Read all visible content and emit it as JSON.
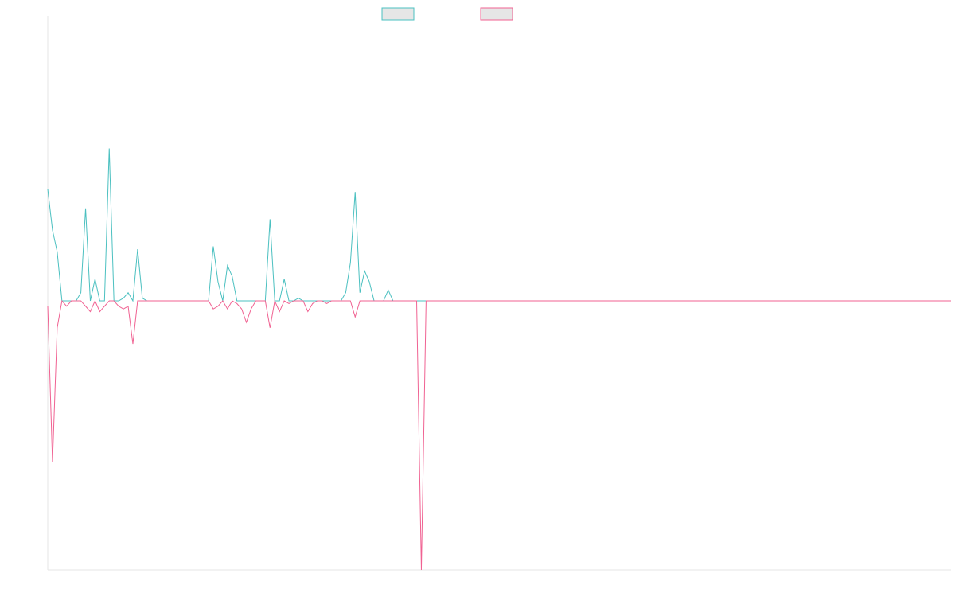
{
  "chart_data": {
    "type": "line",
    "title": "",
    "xlabel": "",
    "ylabel": "",
    "grid": false,
    "legend": "top-center",
    "ylim": [
      -1,
      1
    ],
    "series": [
      {
        "name": "",
        "color": "#4bc0c0",
        "fill": "#e6e6e6",
        "values": [
          0.41,
          0.26,
          0.18,
          0.0,
          0.0,
          0.0,
          0.0,
          0.03,
          0.34,
          0.0,
          0.08,
          0.0,
          0.0,
          0.56,
          0.0,
          0.0,
          0.01,
          0.03,
          0.0,
          0.19,
          0.01,
          0.0,
          0.0,
          0.0,
          0.0,
          0.0,
          0.0,
          0.0,
          0.0,
          0.0,
          0.0,
          0.0,
          0.0,
          0.0,
          0.0,
          0.2,
          0.07,
          0.0,
          0.13,
          0.09,
          0.0,
          0.0,
          0.0,
          0.0,
          0.0,
          0.0,
          0.0,
          0.3,
          0.0,
          0.0,
          0.08,
          0.0,
          0.0,
          0.01,
          0.0,
          0.0,
          0.0,
          0.0,
          0.0,
          0.0,
          0.0,
          0.0,
          0.0,
          0.03,
          0.14,
          0.4,
          0.03,
          0.11,
          0.07,
          0.0,
          0.0,
          0.0,
          0.04,
          0.0,
          0.0,
          0.0,
          0.0,
          0.0,
          0.0,
          0.0,
          0.0,
          0.0,
          0.0,
          0.0,
          0.0,
          0.0,
          0.0,
          0.0,
          0.0,
          0.0,
          0.0,
          0.0,
          0.0,
          0.0,
          0.0,
          0.0,
          0.0,
          0.0,
          0.0,
          0.0,
          0.0,
          0.0,
          0.0,
          0.0,
          0.0,
          0.0,
          0.0,
          0.0,
          0.0,
          0.0,
          0.0,
          0.0,
          0.0,
          0.0,
          0.0,
          0.0,
          0.0,
          0.0,
          0.0,
          0.0,
          0.0,
          0.0,
          0.0,
          0.0,
          0.0,
          0.0,
          0.0,
          0.0,
          0.0,
          0.0,
          0.0,
          0.0,
          0.0,
          0.0,
          0.0,
          0.0,
          0.0,
          0.0,
          0.0,
          0.0,
          0.0,
          0.0,
          0.0,
          0.0,
          0.0,
          0.0,
          0.0,
          0.0,
          0.0,
          0.0,
          0.0,
          0.0,
          0.0,
          0.0,
          0.0,
          0.0,
          0.0,
          0.0,
          0.0,
          0.0,
          0.0,
          0.0,
          0.0,
          0.0,
          0.0,
          0.0,
          0.0,
          0.0,
          0.0,
          0.0,
          0.0,
          0.0,
          0.0,
          0.0,
          0.0,
          0.0,
          0.0,
          0.0,
          0.0,
          0.0,
          0.0,
          0.0,
          0.0,
          0.0,
          0.0,
          0.0,
          0.0,
          0.0,
          0.0,
          0.0,
          0.0,
          0.0
        ]
      },
      {
        "name": "",
        "color": "#f06292",
        "fill": "#e6e6e6",
        "values": [
          -0.02,
          -0.6,
          -0.1,
          0.0,
          -0.02,
          0.0,
          0.0,
          0.0,
          -0.02,
          -0.04,
          0.0,
          -0.04,
          -0.02,
          0.0,
          0.0,
          -0.02,
          -0.03,
          -0.02,
          -0.16,
          0.0,
          0.0,
          0.0,
          0.0,
          0.0,
          0.0,
          0.0,
          0.0,
          0.0,
          0.0,
          0.0,
          0.0,
          0.0,
          0.0,
          0.0,
          0.0,
          -0.03,
          -0.02,
          0.0,
          -0.03,
          0.0,
          -0.01,
          -0.03,
          -0.08,
          -0.03,
          0.0,
          0.0,
          0.0,
          -0.1,
          0.0,
          -0.04,
          0.0,
          -0.01,
          0.0,
          0.0,
          0.0,
          -0.04,
          -0.01,
          0.0,
          0.0,
          -0.01,
          0.0,
          0.0,
          0.0,
          0.0,
          0.0,
          -0.06,
          0.0,
          0.0,
          0.0,
          0.0,
          0.0,
          0.0,
          0.0,
          0.0,
          0.0,
          0.0,
          0.0,
          0.0,
          0.0,
          -1.0,
          0.0,
          0.0,
          0.0,
          0.0,
          0.0,
          0.0,
          0.0,
          0.0,
          0.0,
          0.0,
          0.0,
          0.0,
          0.0,
          0.0,
          0.0,
          0.0,
          0.0,
          0.0,
          0.0,
          0.0,
          0.0,
          0.0,
          0.0,
          0.0,
          0.0,
          0.0,
          0.0,
          0.0,
          0.0,
          0.0,
          0.0,
          0.0,
          0.0,
          0.0,
          0.0,
          0.0,
          0.0,
          0.0,
          0.0,
          0.0,
          0.0,
          0.0,
          0.0,
          0.0,
          0.0,
          0.0,
          0.0,
          0.0,
          0.0,
          0.0,
          0.0,
          0.0,
          0.0,
          0.0,
          0.0,
          0.0,
          0.0,
          0.0,
          0.0,
          0.0,
          0.0,
          0.0,
          0.0,
          0.0,
          0.0,
          0.0,
          0.0,
          0.0,
          0.0,
          0.0,
          0.0,
          0.0,
          0.0,
          0.0,
          0.0,
          0.0,
          0.0,
          0.0,
          0.0,
          0.0,
          0.0,
          0.0,
          0.0,
          0.0,
          0.0,
          0.0,
          0.0,
          0.0,
          0.0,
          0.0,
          0.0,
          0.0,
          0.0,
          0.0,
          0.0,
          0.0,
          0.0,
          0.0,
          0.0,
          0.0,
          0.0,
          0.0,
          0.0,
          0.0,
          0.0,
          0.0,
          0.0,
          0.0,
          0.0,
          0.0,
          0.0,
          0.0
        ]
      }
    ]
  }
}
